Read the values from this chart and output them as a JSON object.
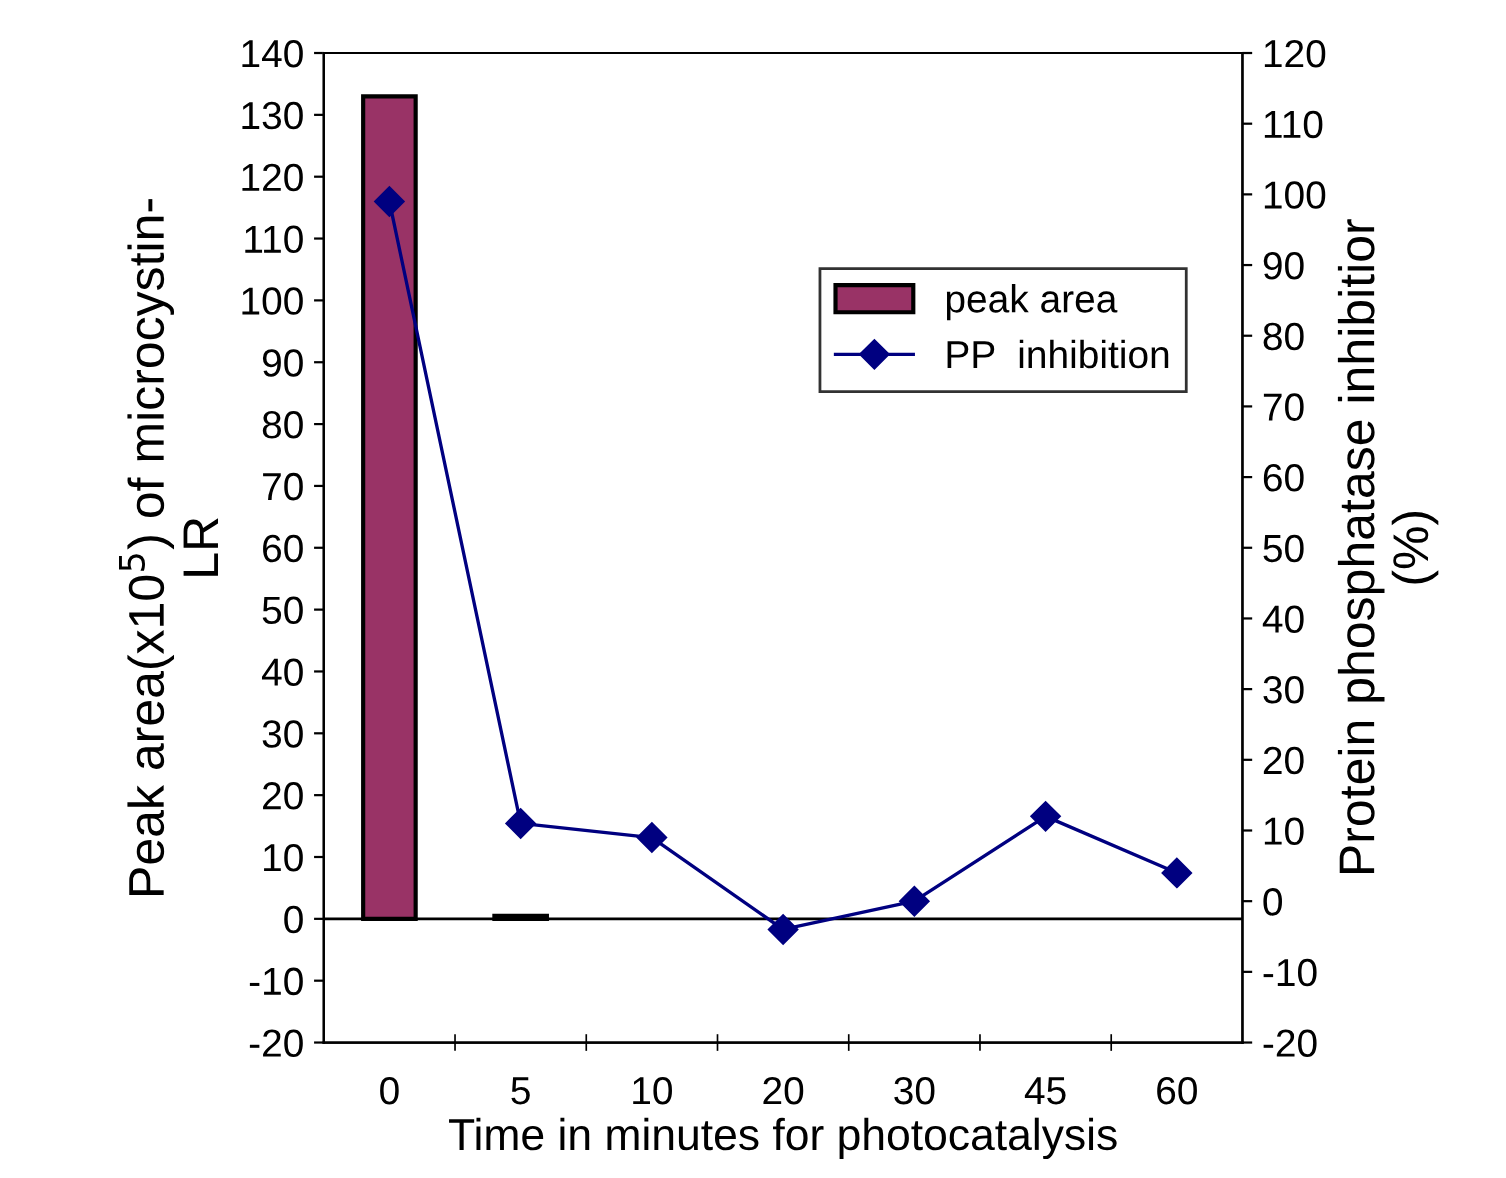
{
  "chart_data": {
    "type": "bar",
    "xlabel": "Time in minutes for photocatalysis",
    "ylabel": "Peak area(x10$^{5}$) of microcystin-\nLR",
    "y2label": "Protein phosphatase inhibitior\n(%)",
    "categories": [
      "0",
      "5",
      "10",
      "20",
      "30",
      "45",
      "60"
    ],
    "series": [
      {
        "name": "peak area",
        "color": "#993366",
        "values": [
          133,
          0.5,
          null,
          null,
          null,
          null,
          null
        ]
      },
      {
        "name": "PP  inhibition",
        "type": "line",
        "axis": "y2",
        "color": "#000080",
        "marker": "diamond",
        "values": [
          99,
          11,
          9,
          -4,
          0,
          12,
          4
        ]
      }
    ],
    "ylim": [
      -20,
      140
    ],
    "yticks": [
      -20,
      -10,
      0,
      10,
      20,
      30,
      40,
      50,
      60,
      70,
      80,
      90,
      100,
      110,
      120,
      130,
      140
    ],
    "y2lim": [
      -20,
      120
    ],
    "y2ticks": [
      -20,
      -10,
      0,
      10,
      20,
      30,
      40,
      50,
      60,
      70,
      80,
      90,
      100,
      110,
      120
    ],
    "ref_lines": [
      {
        "axis": "y",
        "value": 0,
        "color": "#000000"
      }
    ],
    "legend": "right"
  }
}
